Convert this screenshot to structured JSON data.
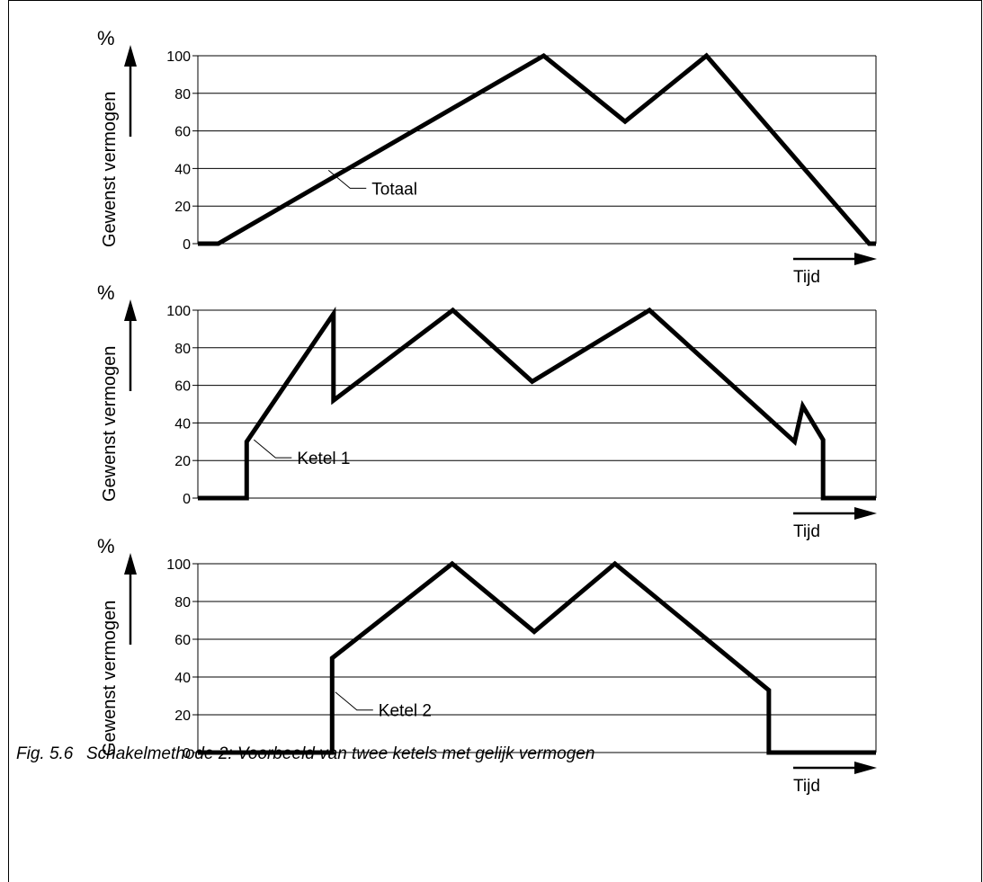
{
  "caption": {
    "number": "Fig. 5.6",
    "text": "Schakelmethode 2: Voorbeeld van twee ketels met gelijk vermogen"
  },
  "chart_data": [
    {
      "type": "line",
      "unit_label": "%",
      "ylabel": "Gewenst vermogen",
      "xlabel": "Tijd",
      "yticks": [
        0,
        20,
        40,
        60,
        80,
        100
      ],
      "ylim": [
        0,
        100
      ],
      "grid": true,
      "series": [
        {
          "name": "Totaal",
          "x": [
            0,
            3,
            51,
            63,
            75,
            99,
            100
          ],
          "y": [
            0,
            0,
            100,
            65,
            100,
            0,
            0
          ]
        }
      ],
      "annotation": {
        "text": "Totaal",
        "x": 19,
        "y": 40
      }
    },
    {
      "type": "line",
      "unit_label": "%",
      "ylabel": "Gewenst vermogen",
      "xlabel": "Tijd",
      "yticks": [
        0,
        20,
        40,
        60,
        80,
        100
      ],
      "ylim": [
        0,
        100
      ],
      "grid": true,
      "series": [
        {
          "name": "Ketel 1",
          "x": [
            0,
            7.2,
            7.2,
            20,
            20,
            37.6,
            49.3,
            66.6,
            88,
            89.2,
            92.2,
            92.2,
            100
          ],
          "y": [
            0,
            0,
            30,
            98,
            52,
            100,
            62,
            100,
            30,
            49,
            31,
            0,
            0
          ]
        }
      ],
      "annotation": {
        "text": "Ketel 1",
        "x": 8,
        "y": 32
      }
    },
    {
      "type": "line",
      "unit_label": "%",
      "ylabel": "Gewenst vermogen",
      "xlabel": "Tijd",
      "yticks": [
        0,
        20,
        40,
        60,
        80,
        100
      ],
      "ylim": [
        0,
        100
      ],
      "grid": true,
      "series": [
        {
          "name": "Ketel 2",
          "x": [
            0,
            19.8,
            19.8,
            37.5,
            49.6,
            61.5,
            84.2,
            84.2,
            100
          ],
          "y": [
            0,
            0,
            50,
            100,
            64,
            100,
            33,
            0,
            0
          ]
        }
      ],
      "annotation": {
        "text": "Ketel 2",
        "x": 20,
        "y": 33
      }
    }
  ]
}
